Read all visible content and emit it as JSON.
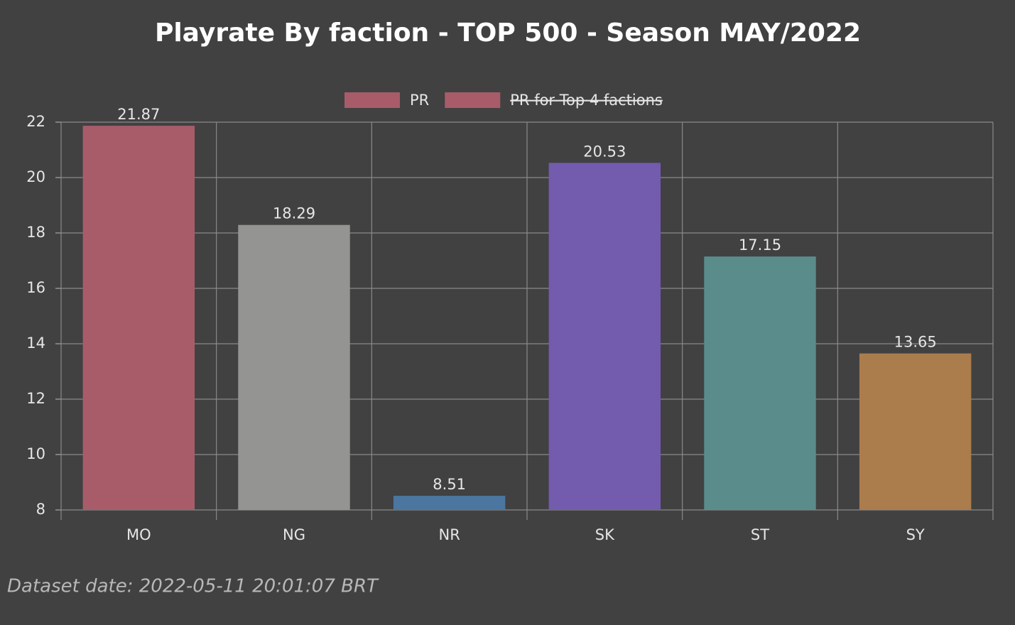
{
  "chart_data": {
    "type": "bar",
    "title": "Playrate By faction - TOP 500 - Season MAY/2022",
    "categories": [
      "MO",
      "NG",
      "NR",
      "SK",
      "ST",
      "SY"
    ],
    "series": [
      {
        "name": "PR",
        "color": "#a85c6a",
        "colors": [
          "#a85c6a",
          "#949492",
          "#4a76a0",
          "#735bad",
          "#5a8c8c",
          "#ab7c4c"
        ],
        "values": [
          21.87,
          18.29,
          8.51,
          20.53,
          17.15,
          13.65
        ]
      },
      {
        "name": "PR for Top 4 factions",
        "color": "#a85c6a",
        "hidden": true
      }
    ],
    "ylim": [
      8,
      22
    ],
    "yticks": [
      8,
      10,
      12,
      14,
      16,
      18,
      20,
      22
    ],
    "grid": true
  },
  "footer": "Dataset date: 2022-05-11 20:01:07 BRT"
}
